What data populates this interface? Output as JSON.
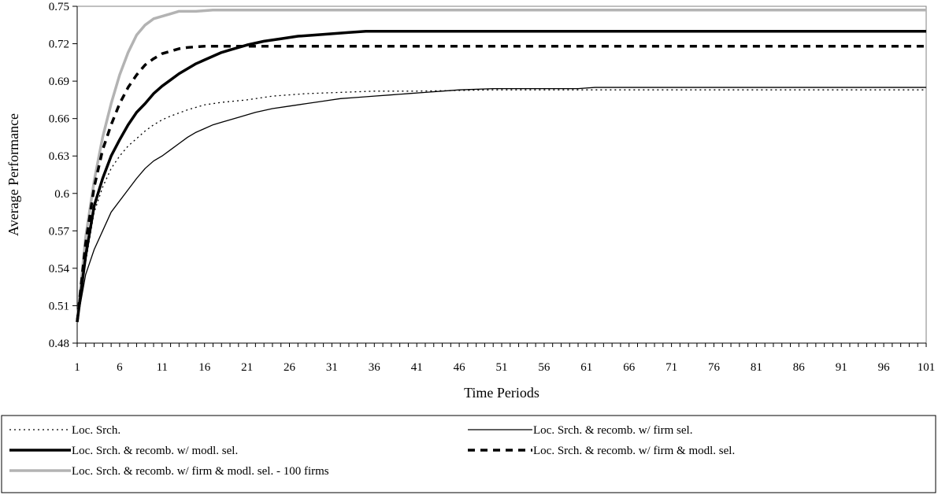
{
  "chart_data": {
    "type": "line",
    "title": "",
    "xlabel": "Time Periods",
    "ylabel": "Average Performance",
    "xlim": [
      1,
      101
    ],
    "ylim": [
      0.48,
      0.75
    ],
    "x_ticks": [
      1,
      6,
      11,
      16,
      21,
      26,
      31,
      36,
      41,
      46,
      51,
      56,
      61,
      66,
      71,
      76,
      81,
      86,
      91,
      96,
      101
    ],
    "y_ticks": [
      "0.48",
      "0.51",
      "0.54",
      "0.57",
      "0.6",
      "0.63",
      "0.66",
      "0.69",
      "0.72",
      "0.75"
    ],
    "grid": false,
    "legend_position": "bottom",
    "series": [
      {
        "name": "Loc. Srch.",
        "style": "dotted",
        "color": "#000000",
        "points": [
          [
            1,
            0.497
          ],
          [
            2,
            0.545
          ],
          [
            3,
            0.585
          ],
          [
            4,
            0.605
          ],
          [
            5,
            0.62
          ],
          [
            6,
            0.63
          ],
          [
            7,
            0.638
          ],
          [
            8,
            0.644
          ],
          [
            9,
            0.65
          ],
          [
            10,
            0.655
          ],
          [
            11,
            0.659
          ],
          [
            12,
            0.662
          ],
          [
            14,
            0.667
          ],
          [
            16,
            0.671
          ],
          [
            18,
            0.673
          ],
          [
            21,
            0.675
          ],
          [
            24,
            0.678
          ],
          [
            28,
            0.68
          ],
          [
            32,
            0.681
          ],
          [
            36,
            0.682
          ],
          [
            41,
            0.682
          ],
          [
            50,
            0.683
          ],
          [
            101,
            0.683
          ]
        ]
      },
      {
        "name": "Loc. Srch. & recomb. w/ firm sel.",
        "style": "thin",
        "color": "#000000",
        "points": [
          [
            1,
            0.497
          ],
          [
            2,
            0.535
          ],
          [
            3,
            0.555
          ],
          [
            4,
            0.57
          ],
          [
            5,
            0.585
          ],
          [
            6,
            0.594
          ],
          [
            7,
            0.603
          ],
          [
            8,
            0.612
          ],
          [
            9,
            0.62
          ],
          [
            10,
            0.626
          ],
          [
            11,
            0.63
          ],
          [
            12,
            0.635
          ],
          [
            13,
            0.64
          ],
          [
            14,
            0.645
          ],
          [
            15,
            0.649
          ],
          [
            16,
            0.652
          ],
          [
            17,
            0.655
          ],
          [
            18,
            0.657
          ],
          [
            19,
            0.659
          ],
          [
            20,
            0.661
          ],
          [
            22,
            0.665
          ],
          [
            24,
            0.668
          ],
          [
            26,
            0.67
          ],
          [
            28,
            0.672
          ],
          [
            30,
            0.674
          ],
          [
            32,
            0.676
          ],
          [
            34,
            0.677
          ],
          [
            36,
            0.678
          ],
          [
            38,
            0.679
          ],
          [
            40,
            0.68
          ],
          [
            42,
            0.681
          ],
          [
            44,
            0.682
          ],
          [
            46,
            0.683
          ],
          [
            50,
            0.684
          ],
          [
            55,
            0.684
          ],
          [
            60,
            0.684
          ],
          [
            62,
            0.685
          ],
          [
            101,
            0.685
          ]
        ]
      },
      {
        "name": "Loc. Srch. & recomb. w/ modl. sel.",
        "style": "thick",
        "color": "#000000",
        "points": [
          [
            1,
            0.497
          ],
          [
            2,
            0.55
          ],
          [
            3,
            0.59
          ],
          [
            4,
            0.612
          ],
          [
            5,
            0.63
          ],
          [
            6,
            0.643
          ],
          [
            7,
            0.655
          ],
          [
            8,
            0.665
          ],
          [
            9,
            0.672
          ],
          [
            10,
            0.68
          ],
          [
            11,
            0.686
          ],
          [
            12,
            0.691
          ],
          [
            13,
            0.696
          ],
          [
            14,
            0.7
          ],
          [
            15,
            0.704
          ],
          [
            16,
            0.707
          ],
          [
            17,
            0.71
          ],
          [
            18,
            0.713
          ],
          [
            19,
            0.715
          ],
          [
            20,
            0.717
          ],
          [
            21,
            0.719
          ],
          [
            23,
            0.722
          ],
          [
            25,
            0.724
          ],
          [
            27,
            0.726
          ],
          [
            29,
            0.727
          ],
          [
            31,
            0.728
          ],
          [
            33,
            0.729
          ],
          [
            35,
            0.73
          ],
          [
            101,
            0.73
          ]
        ]
      },
      {
        "name": "Loc. Srch. & recomb. w/ firm & modl. sel.",
        "style": "dashed",
        "color": "#000000",
        "points": [
          [
            1,
            0.497
          ],
          [
            2,
            0.56
          ],
          [
            3,
            0.605
          ],
          [
            4,
            0.635
          ],
          [
            5,
            0.655
          ],
          [
            6,
            0.672
          ],
          [
            7,
            0.685
          ],
          [
            8,
            0.695
          ],
          [
            9,
            0.703
          ],
          [
            10,
            0.708
          ],
          [
            11,
            0.712
          ],
          [
            12,
            0.714
          ],
          [
            13,
            0.716
          ],
          [
            14,
            0.717
          ],
          [
            16,
            0.718
          ],
          [
            18,
            0.718
          ],
          [
            20,
            0.718
          ],
          [
            101,
            0.718
          ]
        ]
      },
      {
        "name": "Loc. Srch. & recomb. w/ firm & modl. sel. - 100 firms",
        "style": "gray",
        "color": "#b3b3b3",
        "points": [
          [
            1,
            0.497
          ],
          [
            2,
            0.565
          ],
          [
            3,
            0.61
          ],
          [
            4,
            0.645
          ],
          [
            5,
            0.672
          ],
          [
            6,
            0.695
          ],
          [
            7,
            0.713
          ],
          [
            8,
            0.727
          ],
          [
            9,
            0.735
          ],
          [
            10,
            0.74
          ],
          [
            11,
            0.742
          ],
          [
            12,
            0.744
          ],
          [
            13,
            0.746
          ],
          [
            15,
            0.746
          ],
          [
            17,
            0.747
          ],
          [
            101,
            0.747
          ]
        ]
      }
    ]
  }
}
